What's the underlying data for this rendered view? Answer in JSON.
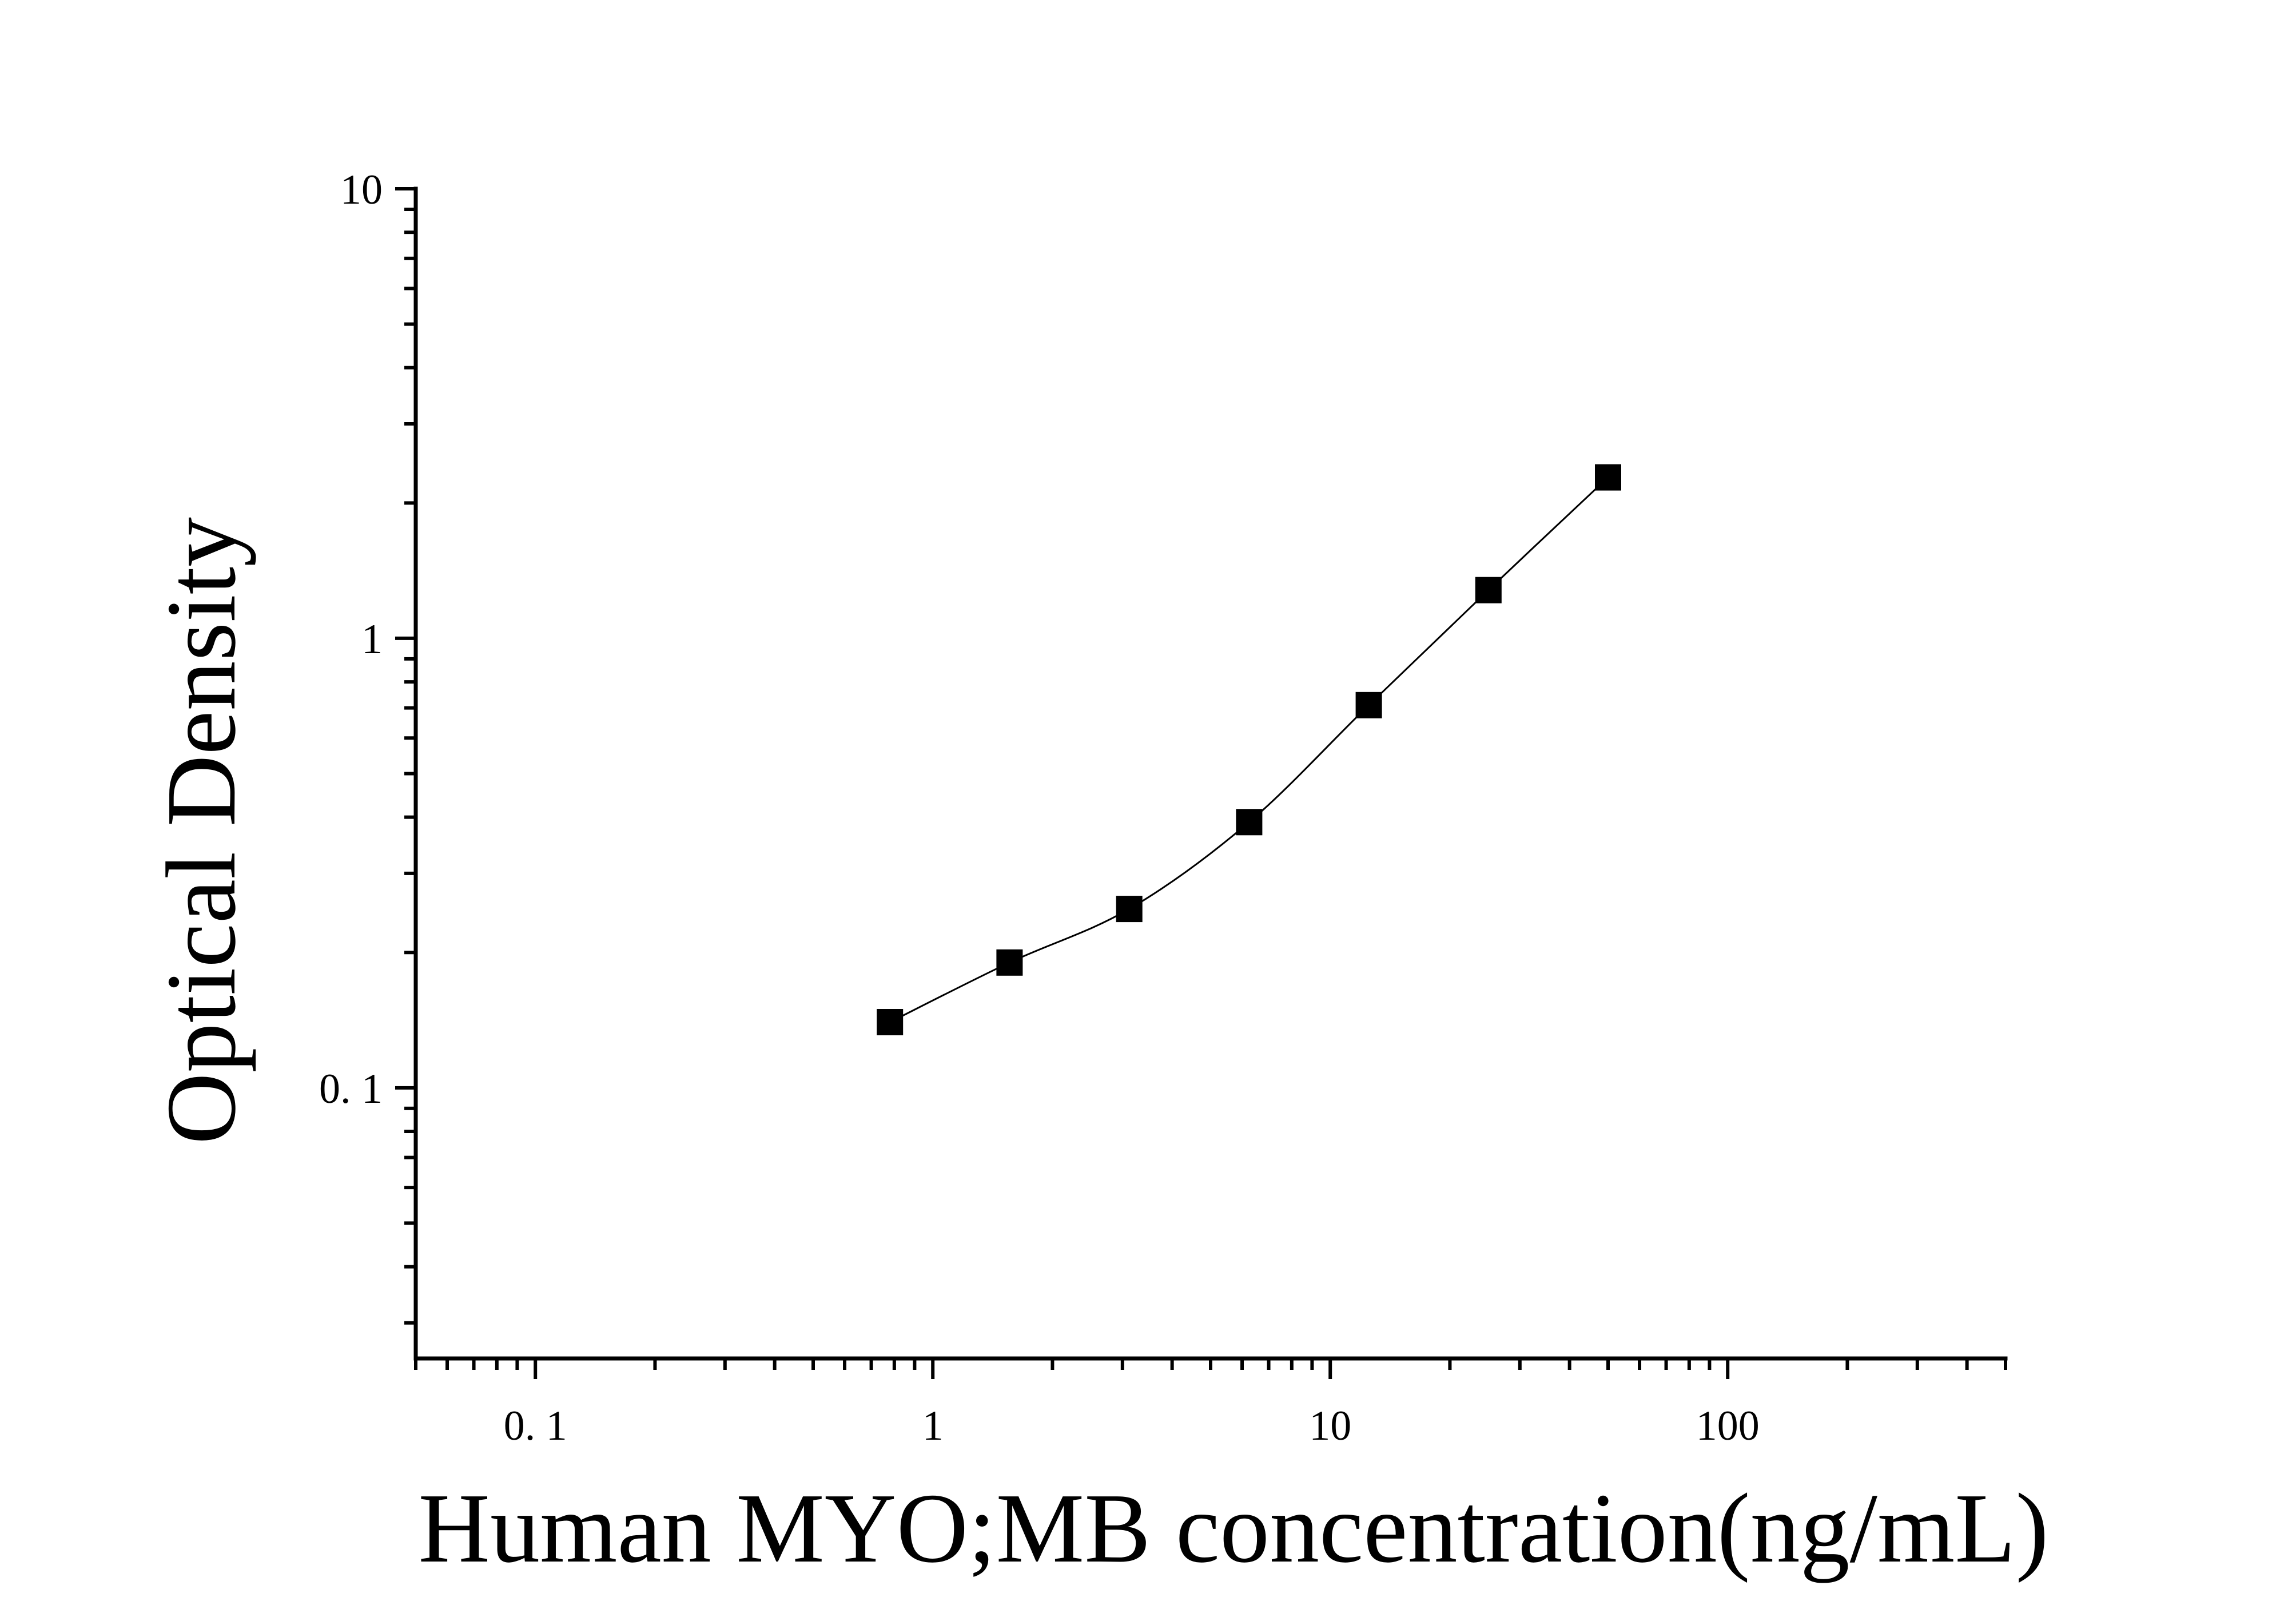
{
  "chart_data": {
    "type": "scatter",
    "title": "",
    "xlabel": "Human MYO;MB concentration(ng/mL)",
    "ylabel": "Optical Density",
    "x_scale": "log",
    "y_scale": "log",
    "xlim": [
      0.05,
      500
    ],
    "ylim": [
      0.025,
      10
    ],
    "x_ticks": [
      0.1,
      1,
      10,
      100
    ],
    "x_tick_labels": [
      "0. 1",
      "1",
      "10",
      "100"
    ],
    "y_ticks": [
      0.1,
      1,
      10
    ],
    "y_tick_labels": [
      "0. 1",
      "1",
      "10"
    ],
    "grid": false,
    "legend": "none",
    "series": [
      {
        "marker": "square",
        "color": "#000000",
        "x": [
          0.78,
          1.56,
          3.12,
          6.25,
          12.5,
          25,
          50
        ],
        "y": [
          0.14,
          0.19,
          0.25,
          0.39,
          0.71,
          1.28,
          2.28
        ]
      }
    ],
    "fit": {
      "type": "curve",
      "color": "#000000"
    }
  }
}
